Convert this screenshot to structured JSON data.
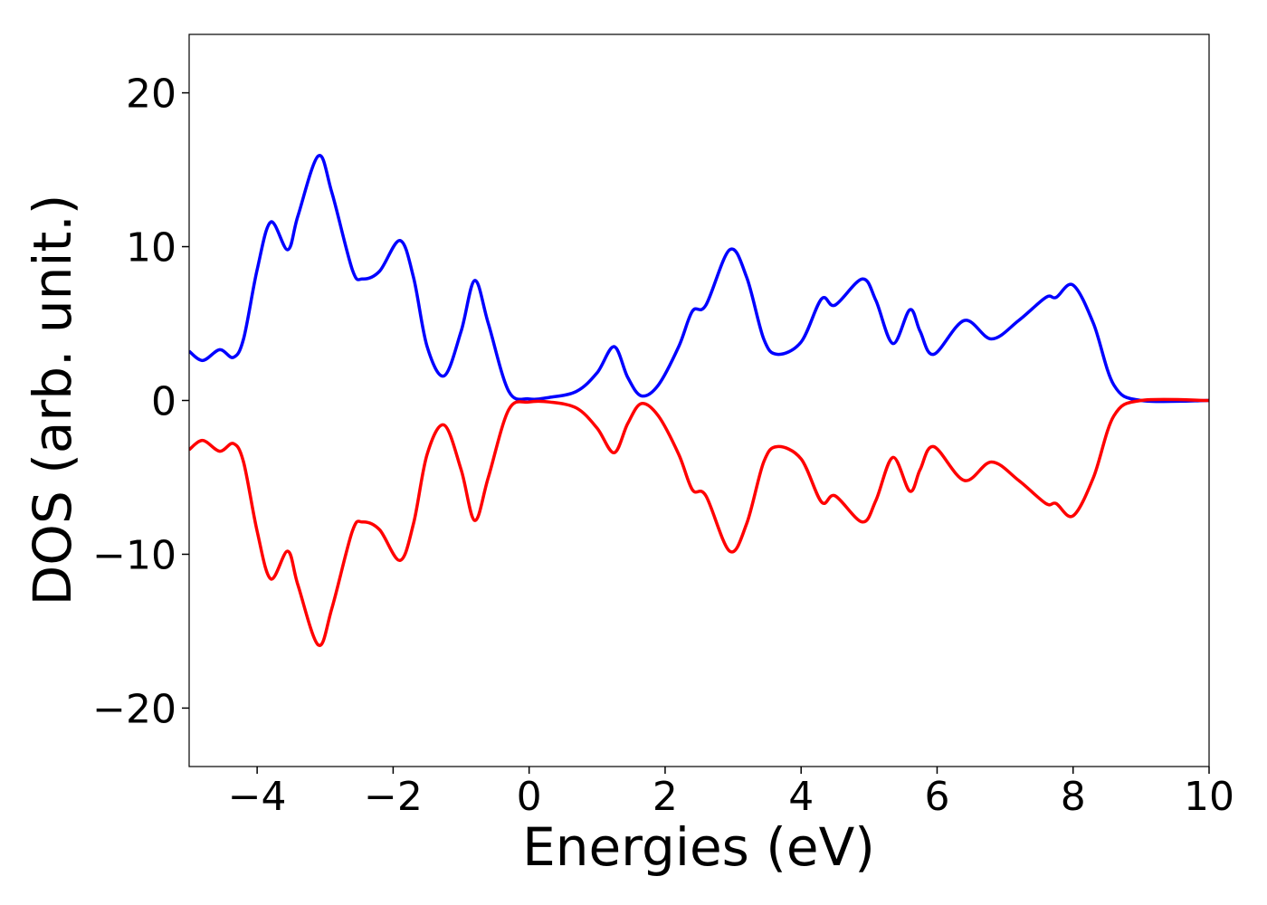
{
  "chart_data": {
    "type": "line",
    "xlabel": "Energies (eV)",
    "ylabel": "DOS (arb. unit.)",
    "x": [
      -5,
      -4.8,
      -4.55,
      -4.35,
      -4.2,
      -4.0,
      -3.8,
      -3.55,
      -3.4,
      -3.1,
      -2.9,
      -2.6,
      -2.45,
      -2.2,
      -1.9,
      -1.7,
      -1.5,
      -1.25,
      -1.0,
      -0.8,
      -0.6,
      -0.3,
      0,
      0.3,
      0.7,
      1.0,
      1.25,
      1.45,
      1.65,
      1.9,
      2.2,
      2.4,
      2.6,
      2.95,
      3.2,
      3.45,
      3.65,
      4.0,
      4.3,
      4.5,
      4.9,
      5.1,
      5.35,
      5.6,
      5.75,
      5.95,
      6.4,
      6.8,
      7.2,
      7.6,
      7.75,
      8.0,
      8.3,
      8.6,
      9.0,
      10
    ],
    "series": [
      {
        "color": "#0000ff",
        "values": [
          3.2,
          2.6,
          3.3,
          2.8,
          4,
          8.5,
          11.6,
          9.8,
          12,
          15.9,
          13.5,
          8.5,
          7.9,
          8.4,
          10.4,
          8,
          3.5,
          1.6,
          4.5,
          7.8,
          5,
          0.6,
          0.1,
          0.2,
          0.6,
          1.8,
          3.5,
          1.5,
          0.3,
          1,
          3.5,
          5.8,
          6.2,
          9.8,
          8,
          4,
          3,
          3.8,
          6.6,
          6.2,
          7.9,
          6.5,
          3.7,
          5.9,
          4.5,
          3,
          5.2,
          4,
          5.2,
          6.7,
          6.7,
          7.5,
          5,
          1,
          0,
          0
        ]
      },
      {
        "color": "#ff0000",
        "values": [
          -3.2,
          -2.6,
          -3.3,
          -2.8,
          -4,
          -8.5,
          -11.6,
          -9.8,
          -12,
          -15.9,
          -13.5,
          -8.5,
          -7.9,
          -8.4,
          -10.4,
          -8,
          -3.5,
          -1.6,
          -4.5,
          -7.8,
          -5,
          -0.6,
          -0.1,
          -0.1,
          -0.5,
          -1.8,
          -3.4,
          -1.5,
          -0.2,
          -1,
          -3.5,
          -5.8,
          -6.2,
          -9.8,
          -8,
          -4,
          -3,
          -3.8,
          -6.6,
          -6.2,
          -7.9,
          -6.5,
          -3.7,
          -5.9,
          -4.5,
          -3,
          -5.2,
          -4,
          -5.2,
          -6.7,
          -6.7,
          -7.5,
          -5,
          -1,
          0,
          0
        ]
      }
    ],
    "xlim": [
      -5,
      10
    ],
    "ylim": [
      -23.8,
      23.8
    ],
    "xticks": [
      {
        "value": -4,
        "label": "−4"
      },
      {
        "value": -2,
        "label": "−2"
      },
      0,
      2,
      4,
      6,
      8,
      10
    ],
    "yticks": [
      {
        "value": -20,
        "label": "−20"
      },
      {
        "value": -10,
        "label": "−10"
      },
      0,
      10,
      20
    ]
  }
}
